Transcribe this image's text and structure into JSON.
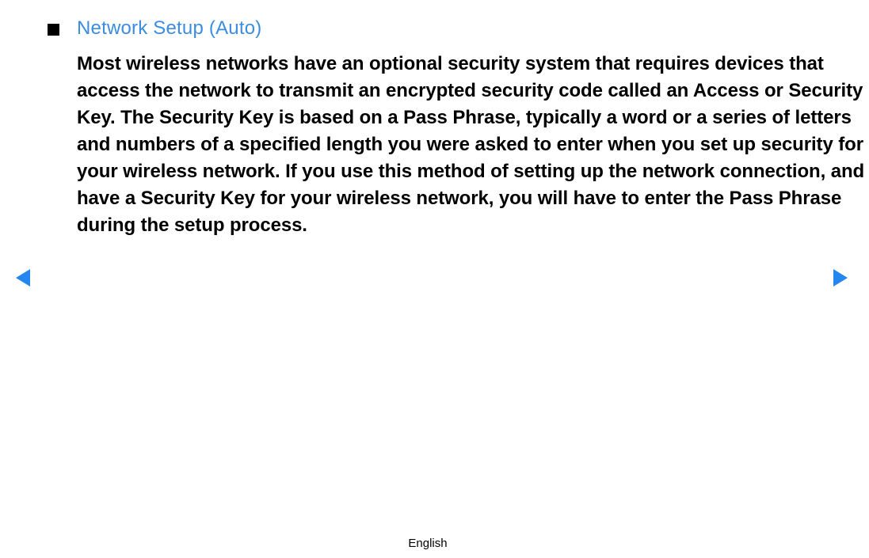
{
  "heading": {
    "title": "Network Setup (Auto)",
    "title_color": "#3a8de0",
    "title_fontsize": 24,
    "bullet_color": "#000000"
  },
  "body": {
    "text": "Most wireless networks have an optional security system that requires devices that access the network to transmit an encrypted security code called an Access or Security Key. The Security Key is based on a Pass Phrase, typically a word or a series of letters and numbers of a specified length you were asked to enter when you set up security for your wireless network. If you use this method of setting up the network connection, and have a Security Key for your wireless network, you will have to enter the Pass Phrase during the setup process.",
    "text_color": "#000000",
    "fontsize": 24,
    "fontweight": 600
  },
  "navigation": {
    "arrow_color": "#2586f0"
  },
  "footer": {
    "language": "English"
  }
}
